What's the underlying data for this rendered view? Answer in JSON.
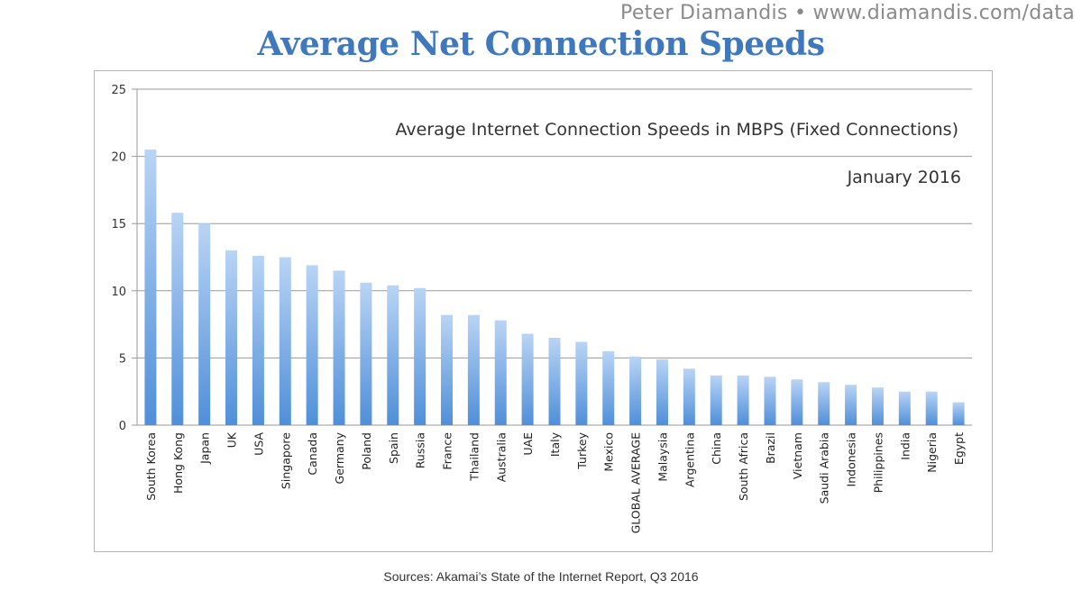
{
  "header": {
    "attribution": "Peter Diamandis  •  www.diamandis.com/data",
    "headline": "Average Net Connection Speeds"
  },
  "footer": {
    "sources": "Sources: Akamai’s State of the Internet Report, Q3 2016"
  },
  "colors": {
    "headline": "#3f78bd",
    "bar_top": "#b9d4f5",
    "bar_bottom": "#4f8fd9",
    "grid": "#9a9a9a"
  },
  "chart_data": {
    "type": "bar",
    "title": "Average Internet Connection Speeds in MBPS (Fixed Connections)",
    "subtitle": "January 2016",
    "xlabel": "",
    "ylabel": "",
    "ylim": [
      0,
      25
    ],
    "yticks": [
      0,
      5,
      10,
      15,
      20,
      25
    ],
    "grid": true,
    "legend": "none",
    "categories": [
      "South Korea",
      "Hong Kong",
      "Japan",
      "UK",
      "USA",
      "Singapore",
      "Canada",
      "Germany",
      "Poland",
      "Spain",
      "Russia",
      "France",
      "Thailand",
      "Australia",
      "UAE",
      "Italy",
      "Turkey",
      "Mexico",
      "GLOBAL AVERAGE",
      "Malaysia",
      "Argentina",
      "China",
      "South Africa",
      "Brazil",
      "Vietnam",
      "Saudi Arabia",
      "Indonesia",
      "Philippines",
      "India",
      "Nigeria",
      "Egypt"
    ],
    "values": [
      20.5,
      15.8,
      15.0,
      13.0,
      12.6,
      12.5,
      11.9,
      11.5,
      10.6,
      10.4,
      10.2,
      8.2,
      8.2,
      7.8,
      6.8,
      6.5,
      6.2,
      5.5,
      5.1,
      4.9,
      4.2,
      3.7,
      3.7,
      3.6,
      3.4,
      3.2,
      3.0,
      2.8,
      2.5,
      2.5,
      1.7
    ]
  }
}
